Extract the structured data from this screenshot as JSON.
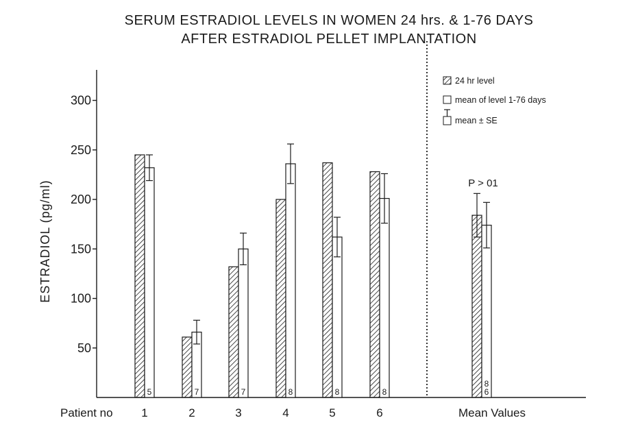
{
  "chart_data": {
    "type": "bar",
    "title_lines": [
      "SERUM ESTRADIOL LEVELS IN WOMEN 24 hrs. & 1-76 DAYS",
      "AFTER ESTRADIOL PELLET IMPLANTATION"
    ],
    "ylabel": "ESTRADIOL (pg/ml)",
    "ylim": [
      0,
      330
    ],
    "yticks": [
      50,
      100,
      150,
      200,
      250,
      300
    ],
    "ytick_labels": [
      "50",
      "100",
      "150",
      "200",
      "250",
      "300"
    ],
    "x_prefix_label": "Patient no",
    "categories": [
      "1",
      "2",
      "3",
      "4",
      "5",
      "6",
      "Mean Values"
    ],
    "series": [
      {
        "name": "24 hr level",
        "pattern": "hatched",
        "values": [
          245,
          61,
          132,
          200,
          237,
          228,
          184
        ],
        "se": [
          null,
          null,
          null,
          null,
          null,
          null,
          22
        ]
      },
      {
        "name": "mean of level 1-76 days",
        "pattern": "open",
        "values": [
          232,
          66,
          150,
          236,
          162,
          201,
          174
        ],
        "se": [
          13,
          12,
          16,
          20,
          20,
          25,
          23
        ]
      }
    ],
    "n_labels": [
      "5",
      "7",
      "7",
      "8",
      "8",
      "8",
      "6"
    ],
    "mean_extra_n_label": "8",
    "legend": [
      {
        "symbol": "hatched",
        "text": "24 hr level"
      },
      {
        "symbol": "open",
        "text": "mean of level 1-76 days"
      },
      {
        "symbol": "errorbar",
        "text": "mean ± SE"
      }
    ],
    "legend_position": "top-right",
    "annotation": "P > 01",
    "divider": "dotted vertical line between patient 6 and mean values",
    "grid": false,
    "colors": {
      "ink": "#1a1a1a",
      "background": "#ffffff"
    }
  }
}
